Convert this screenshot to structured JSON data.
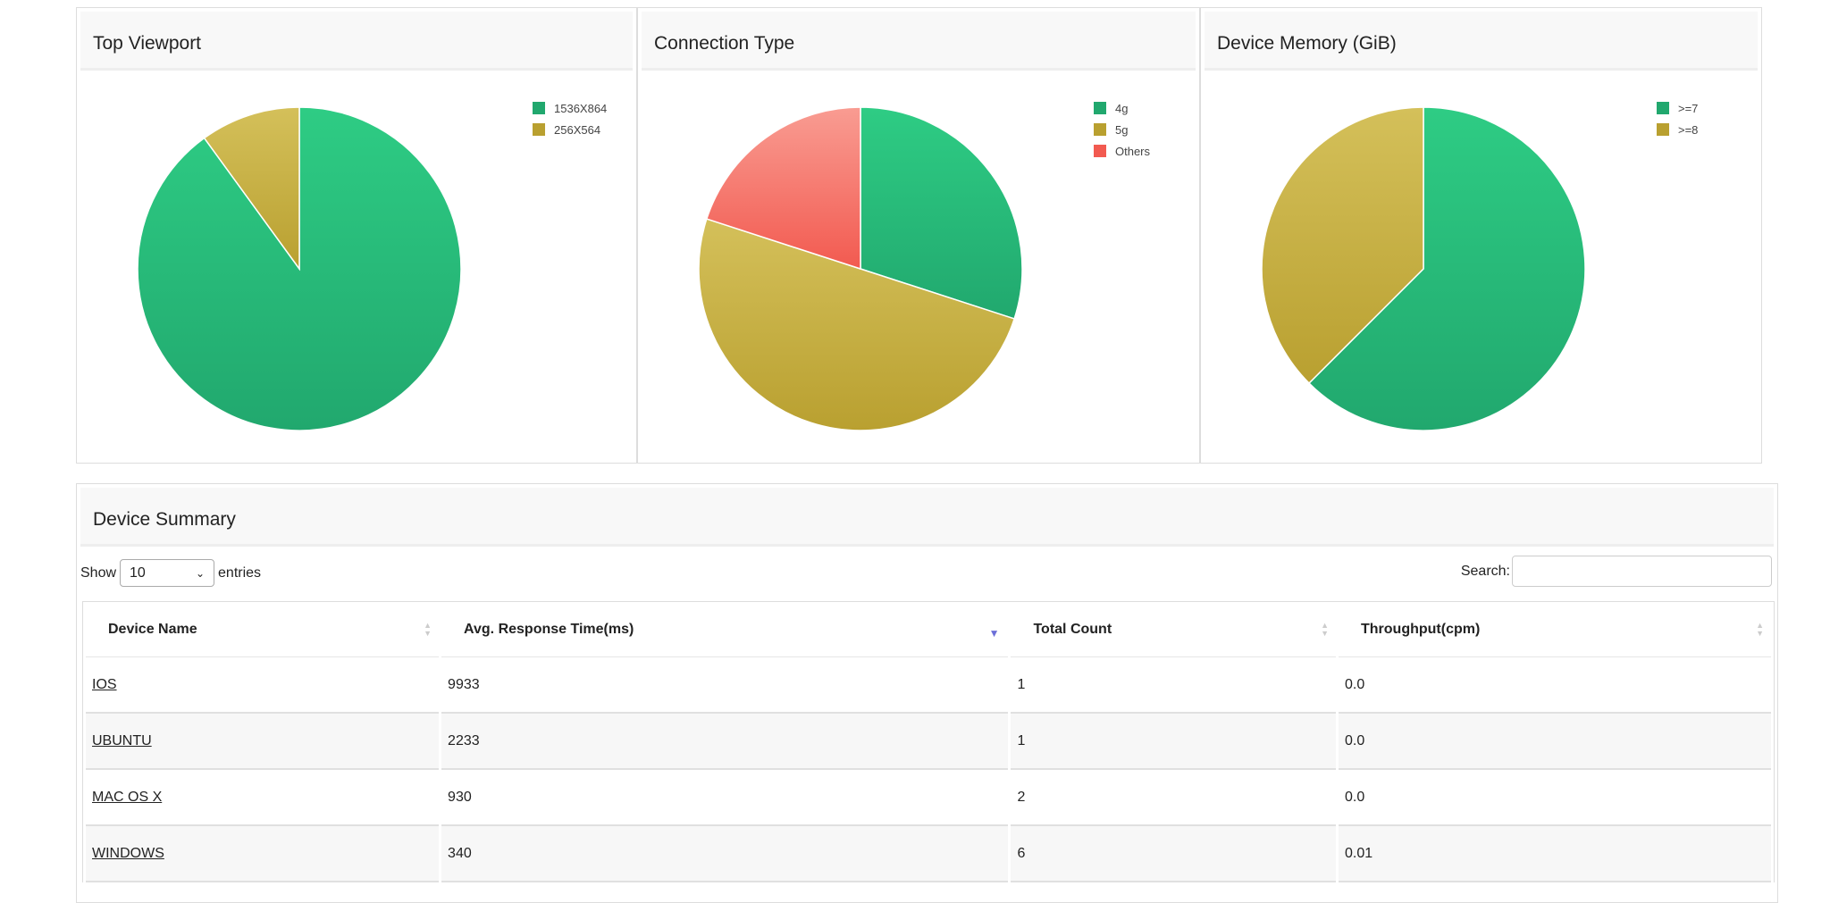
{
  "charts": [
    {
      "title": "Top Viewport",
      "chart_data": {
        "type": "pie",
        "labels": [
          "1536X864",
          "256X564"
        ],
        "values": [
          90,
          10
        ],
        "colors": [
          "#21a86e",
          "#b9a030"
        ],
        "legend": "top-right"
      }
    },
    {
      "title": "Connection Type",
      "chart_data": {
        "type": "pie",
        "labels": [
          "4g",
          "5g",
          "Others"
        ],
        "values": [
          30,
          50,
          20
        ],
        "colors": [
          "#21a86e",
          "#b9a030",
          "#f25a50"
        ],
        "legend": "top-right"
      }
    },
    {
      "title": "Device Memory (GiB)",
      "chart_data": {
        "type": "pie",
        "labels": [
          ">=7",
          ">=8"
        ],
        "values": [
          62.5,
          37.5
        ],
        "colors": [
          "#21a86e",
          "#b9a030"
        ],
        "legend": "top-right"
      }
    }
  ],
  "summary": {
    "title": "Device Summary",
    "show_label": "Show",
    "entries_value": "10",
    "entries_label": "entries",
    "search_label": "Search:",
    "search_value": "",
    "columns": [
      "Device Name",
      "Avg. Response Time(ms)",
      "Total Count",
      "Throughput(cpm)"
    ],
    "sorted_column": "Avg. Response Time(ms)",
    "sort_direction": "descending",
    "rows": [
      [
        "IOS",
        "9933",
        "1",
        "0.0"
      ],
      [
        "UBUNTU",
        "2233",
        "1",
        "0.0"
      ],
      [
        "MAC OS X",
        "930",
        "2",
        "0.0"
      ],
      [
        "WINDOWS",
        "340",
        "6",
        "0.01"
      ]
    ]
  }
}
